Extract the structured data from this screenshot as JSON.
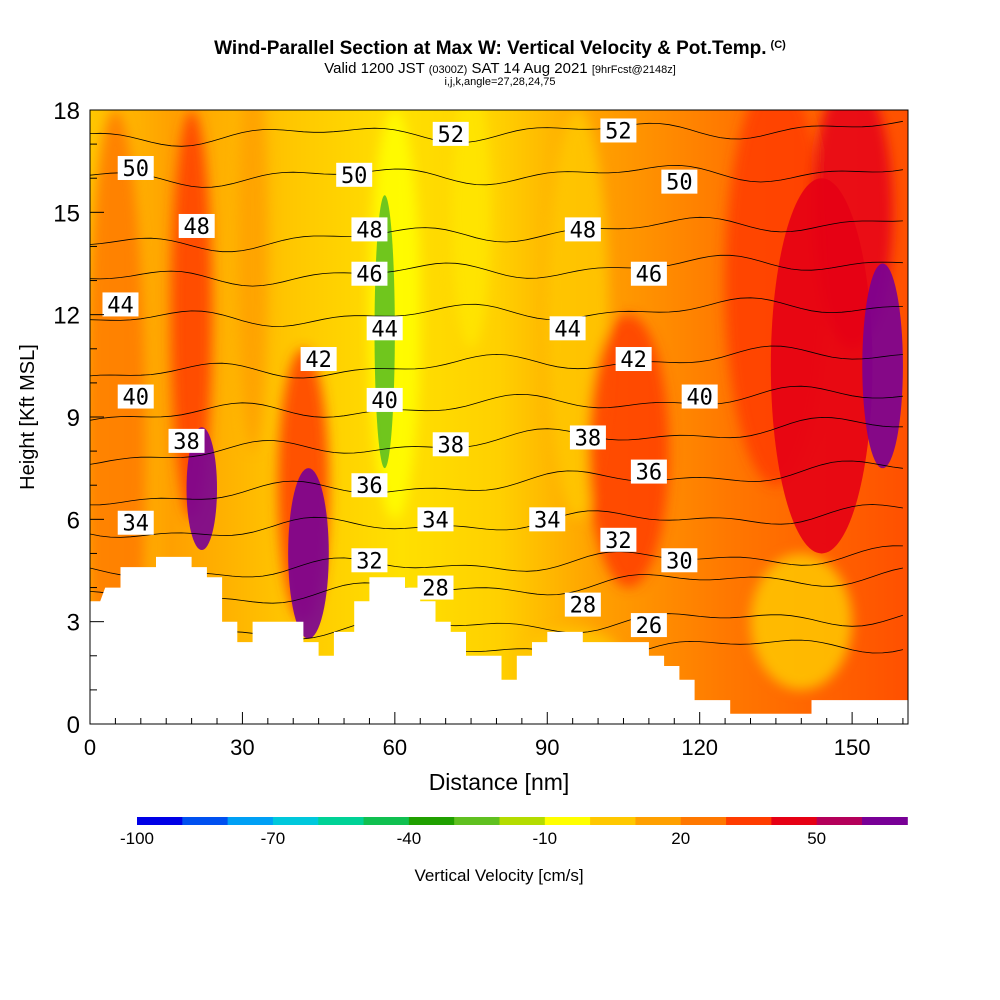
{
  "title": {
    "main": "Wind-Parallel Section at Max W: Vertical Velocity & Pot.Temp.",
    "corner_mark": "(C)",
    "valid_prefix": "Valid 1200 JST",
    "valid_utc": "(0300Z)",
    "valid_date": "SAT 14 Aug 2021",
    "forecast_info": "[9hrFcst@2148z]",
    "indices": "i,j,k,angle=27,28,24,75"
  },
  "chart_data": {
    "type": "contour",
    "xlabel": "Distance [nm]",
    "ylabel": "Height [Kft MSL]",
    "xlim": [
      0,
      161
    ],
    "ylim": [
      0,
      18
    ],
    "x_ticks": [
      0,
      30,
      60,
      90,
      120,
      150
    ],
    "x_tick_labels": [
      "0",
      "30",
      "60",
      "90",
      "120",
      "150"
    ],
    "y_ticks": [
      0,
      3,
      6,
      9,
      12,
      15,
      18
    ],
    "y_tick_labels": [
      "0",
      "3",
      "6",
      "9",
      "12",
      "15",
      "18"
    ],
    "colorbar": {
      "label": "Vertical Velocity [cm/s]",
      "min": -100,
      "max": 60,
      "step": 10,
      "tick_values": [
        -100,
        -70,
        -40,
        -10,
        20,
        50
      ],
      "tick_labels": [
        "-100",
        "-70",
        "-40",
        "-10",
        "20",
        "50"
      ],
      "colors": [
        "#0000e6",
        "#0050f0",
        "#00a0f5",
        "#00c8dc",
        "#00d296",
        "#10c050",
        "#20a000",
        "#60c020",
        "#b4dc00",
        "#ffff00",
        "#ffc800",
        "#ffa000",
        "#ff7800",
        "#ff3c00",
        "#e60014",
        "#b4005a",
        "#780096"
      ]
    },
    "terrain_kft": [
      [
        0,
        3.6
      ],
      [
        2,
        3.6
      ],
      [
        3,
        4.0
      ],
      [
        6,
        4.0
      ],
      [
        6,
        4.6
      ],
      [
        13,
        4.6
      ],
      [
        13,
        4.9
      ],
      [
        20,
        4.9
      ],
      [
        20,
        4.6
      ],
      [
        23,
        4.6
      ],
      [
        23,
        4.3
      ],
      [
        26,
        4.3
      ],
      [
        26,
        3.0
      ],
      [
        29,
        3.0
      ],
      [
        29,
        2.4
      ],
      [
        32,
        2.4
      ],
      [
        32,
        3.0
      ],
      [
        42,
        3.0
      ],
      [
        42,
        2.4
      ],
      [
        45,
        2.4
      ],
      [
        45,
        2.0
      ],
      [
        48,
        2.0
      ],
      [
        48,
        2.7
      ],
      [
        52,
        2.7
      ],
      [
        52,
        3.6
      ],
      [
        55,
        3.6
      ],
      [
        55,
        4.3
      ],
      [
        62,
        4.3
      ],
      [
        62,
        4.0
      ],
      [
        65,
        4.0
      ],
      [
        65,
        3.6
      ],
      [
        68,
        3.6
      ],
      [
        68,
        3.0
      ],
      [
        71,
        3.0
      ],
      [
        71,
        2.7
      ],
      [
        74,
        2.7
      ],
      [
        74,
        2.0
      ],
      [
        81,
        2.0
      ],
      [
        81,
        1.3
      ],
      [
        84,
        1.3
      ],
      [
        84,
        2.0
      ],
      [
        87,
        2.0
      ],
      [
        87,
        2.4
      ],
      [
        90,
        2.4
      ],
      [
        90,
        2.7
      ],
      [
        97,
        2.7
      ],
      [
        97,
        2.4
      ],
      [
        110,
        2.4
      ],
      [
        110,
        2.0
      ],
      [
        113,
        2.0
      ],
      [
        113,
        1.7
      ],
      [
        116,
        1.7
      ],
      [
        116,
        1.3
      ],
      [
        119,
        1.3
      ],
      [
        119,
        0.7
      ],
      [
        126,
        0.7
      ],
      [
        126,
        0.3
      ],
      [
        142,
        0.3
      ],
      [
        142,
        0.7
      ],
      [
        161,
        0.7
      ]
    ],
    "velocity_zones": [
      {
        "name": "updraft-core-west",
        "x": 22,
        "y": 6.9,
        "rx": 3,
        "ry": 1.8,
        "value": 55
      },
      {
        "name": "updraft-core-central",
        "x": 43,
        "y": 5.0,
        "rx": 4,
        "ry": 2.5,
        "value": 55
      },
      {
        "name": "updraft-east-tower",
        "x": 144,
        "y": 10.5,
        "rx": 10,
        "ry": 5.5,
        "value": 40
      },
      {
        "name": "updraft-east-core",
        "x": 156,
        "y": 10.5,
        "rx": 4,
        "ry": 3,
        "value": 55
      },
      {
        "name": "weak-downdraft-column",
        "x": 58,
        "y": 11.5,
        "rx": 2,
        "ry": 4,
        "value": -30
      }
    ],
    "theta_contours": [
      {
        "value": 26,
        "y_left": 1.8,
        "y_right": 2.4
      },
      {
        "value": 28,
        "y_left": 2.6,
        "y_right": 3.2
      },
      {
        "value": 30,
        "y_left": 3.6,
        "y_right": 4.4
      },
      {
        "value": 32,
        "y_left": 4.4,
        "y_right": 5.0
      },
      {
        "value": 34,
        "y_left": 5.6,
        "y_right": 6.2
      },
      {
        "value": 36,
        "y_left": 6.6,
        "y_right": 7.5
      },
      {
        "value": 38,
        "y_left": 7.8,
        "y_right": 8.8
      },
      {
        "value": 40,
        "y_left": 9.0,
        "y_right": 9.7
      },
      {
        "value": 42,
        "y_left": 10.2,
        "y_right": 10.9
      },
      {
        "value": 44,
        "y_left": 11.8,
        "y_right": 12.3
      },
      {
        "value": 46,
        "y_left": 13.0,
        "y_right": 13.6
      },
      {
        "value": 48,
        "y_left": 14.0,
        "y_right": 14.8
      },
      {
        "value": 50,
        "y_left": 16.0,
        "y_right": 16.2
      },
      {
        "value": 52,
        "y_left": 17.2,
        "y_right": 17.5
      }
    ],
    "theta_labels": [
      {
        "text": "50",
        "x": 9,
        "y": 16.3
      },
      {
        "text": "48",
        "x": 21,
        "y": 14.6
      },
      {
        "text": "44",
        "x": 6,
        "y": 12.3
      },
      {
        "text": "40",
        "x": 9,
        "y": 9.6
      },
      {
        "text": "38",
        "x": 19,
        "y": 8.3
      },
      {
        "text": "34",
        "x": 9,
        "y": 5.9
      },
      {
        "text": "52",
        "x": 71,
        "y": 17.3
      },
      {
        "text": "50",
        "x": 52,
        "y": 16.1
      },
      {
        "text": "48",
        "x": 55,
        "y": 14.5
      },
      {
        "text": "46",
        "x": 55,
        "y": 13.2
      },
      {
        "text": "44",
        "x": 58,
        "y": 11.6
      },
      {
        "text": "42",
        "x": 45,
        "y": 10.7
      },
      {
        "text": "40",
        "x": 58,
        "y": 9.5
      },
      {
        "text": "38",
        "x": 71,
        "y": 8.2
      },
      {
        "text": "36",
        "x": 55,
        "y": 7.0
      },
      {
        "text": "34",
        "x": 68,
        "y": 6.0
      },
      {
        "text": "32",
        "x": 55,
        "y": 4.8
      },
      {
        "text": "28",
        "x": 68,
        "y": 4.0
      },
      {
        "text": "34",
        "x": 90,
        "y": 6.0
      },
      {
        "text": "52",
        "x": 104,
        "y": 17.4
      },
      {
        "text": "50",
        "x": 116,
        "y": 15.9
      },
      {
        "text": "48",
        "x": 97,
        "y": 14.5
      },
      {
        "text": "46",
        "x": 110,
        "y": 13.2
      },
      {
        "text": "44",
        "x": 94,
        "y": 11.6
      },
      {
        "text": "42",
        "x": 107,
        "y": 10.7
      },
      {
        "text": "40",
        "x": 120,
        "y": 9.6
      },
      {
        "text": "38",
        "x": 98,
        "y": 8.4
      },
      {
        "text": "36",
        "x": 110,
        "y": 7.4
      },
      {
        "text": "32",
        "x": 104,
        "y": 5.4
      },
      {
        "text": "30",
        "x": 116,
        "y": 4.8
      },
      {
        "text": "28",
        "x": 97,
        "y": 3.5
      },
      {
        "text": "26",
        "x": 110,
        "y": 2.9
      }
    ]
  }
}
